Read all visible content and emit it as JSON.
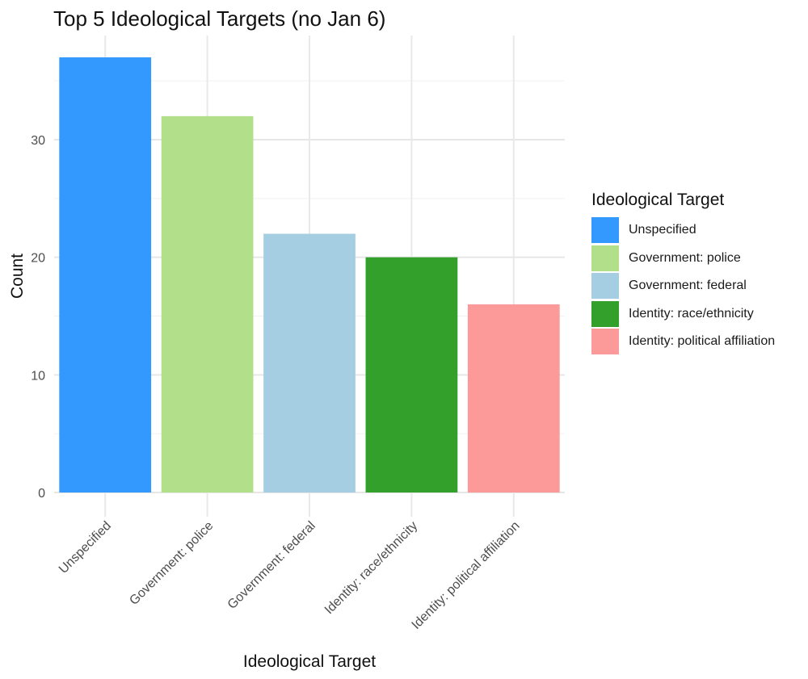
{
  "chart_data": {
    "type": "bar",
    "title": "Top 5 Ideological Targets (no Jan 6)",
    "xlabel": "Ideological Target",
    "ylabel": "Count",
    "categories": [
      "Unspecified",
      "Government: police",
      "Government: federal",
      "Identity: race/ethnicity",
      "Identity: political affiliation"
    ],
    "values": [
      37,
      32,
      22,
      20,
      16
    ],
    "ylim": [
      0,
      39
    ],
    "yticks": [
      0,
      10,
      20,
      30
    ],
    "grid": true,
    "legend": {
      "title": "Ideological Target",
      "placement": "right",
      "entries": [
        "Unspecified",
        "Government: police",
        "Government: federal",
        "Identity: race/ethnicity",
        "Identity: political affiliation"
      ]
    },
    "colors": [
      "#3399ff",
      "#b2df8a",
      "#a6cee3",
      "#33a02c",
      "#fb9a99"
    ]
  }
}
